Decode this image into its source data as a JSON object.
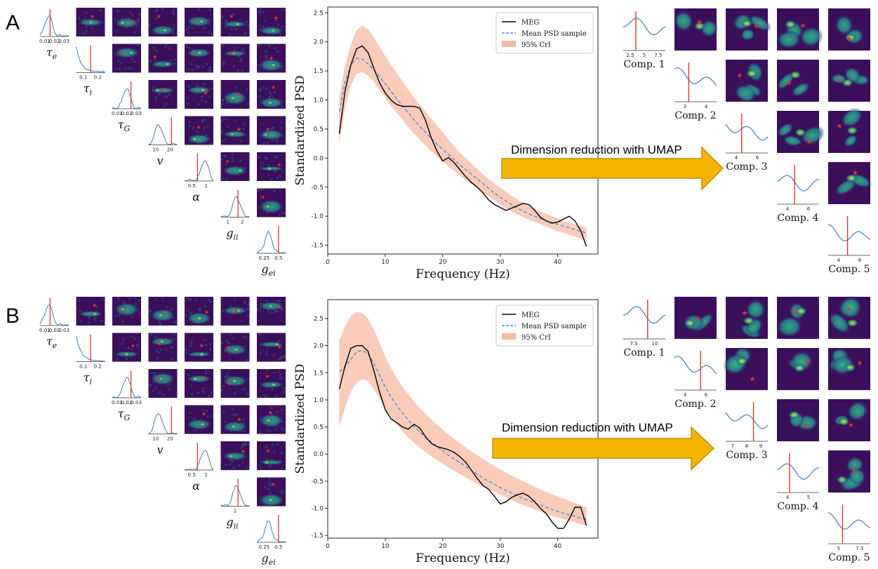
{
  "colors": {
    "meg": "#000000",
    "mean": "#4a90d9",
    "band": "#f7b9a0",
    "posterior_line": "#3a7fc0",
    "truth": "#e8332a",
    "arrow_fill": "#f5b400",
    "arrow_stroke": "#c48b00",
    "heat_dark": "#3b0f5c",
    "heat_mid": "#21918c",
    "heat_bright": "#fde725"
  },
  "panels": [
    {
      "letter": "A",
      "params": [
        {
          "label": "τe",
          "sub": "e",
          "base": "τ",
          "ticks": [
            "0.01",
            "0.02",
            "0.03"
          ]
        },
        {
          "label": "τi",
          "sub": "i",
          "base": "τ",
          "ticks": [
            "0.1",
            "0.2"
          ]
        },
        {
          "label": "τG",
          "sub": "G",
          "base": "τ",
          "ticks": [
            "0.01",
            "0.02",
            "0.03"
          ]
        },
        {
          "label": "v",
          "sub": "",
          "base": "v",
          "ticks": [
            "10",
            "20"
          ]
        },
        {
          "label": "α",
          "sub": "",
          "base": "α",
          "ticks": [
            "0.5",
            "1"
          ]
        },
        {
          "label": "gii",
          "sub": "ii",
          "base": "g",
          "ticks": [
            "1",
            "2"
          ]
        },
        {
          "label": "gei",
          "sub": "ei",
          "base": "g",
          "ticks": [
            "0.25",
            "0.5"
          ]
        }
      ],
      "arrow_label": "Dimension reduction with UMAP",
      "comps": [
        {
          "label": "Comp. 1",
          "ticks": [
            "2.5",
            "5",
            "7.5"
          ]
        },
        {
          "label": "Comp. 2",
          "ticks": [
            "3",
            "4"
          ]
        },
        {
          "label": "Comp. 3",
          "ticks": [
            "4",
            "6"
          ]
        },
        {
          "label": "Comp. 4",
          "ticks": [
            "4",
            "6"
          ]
        },
        {
          "label": "Comp. 5",
          "ticks": [
            "4",
            "6"
          ]
        }
      ]
    },
    {
      "letter": "B",
      "params": [
        {
          "label": "τe",
          "sub": "e",
          "base": "τ",
          "ticks": [
            "0.01",
            "0.02",
            "0.03"
          ]
        },
        {
          "label": "τi",
          "sub": "i",
          "base": "τ",
          "ticks": [
            "0.1",
            "0.2"
          ]
        },
        {
          "label": "τG",
          "sub": "G",
          "base": "τ",
          "ticks": [
            "0.01",
            "0.02",
            "0.03"
          ]
        },
        {
          "label": "v",
          "sub": "",
          "base": "v",
          "ticks": [
            "10",
            "20"
          ]
        },
        {
          "label": "α",
          "sub": "",
          "base": "α",
          "ticks": [
            "0.5",
            "1"
          ]
        },
        {
          "label": "gii",
          "sub": "ii",
          "base": "g",
          "ticks": [
            "1"
          ]
        },
        {
          "label": "gei",
          "sub": "ei",
          "base": "g",
          "ticks": [
            "0.25",
            "0.5"
          ]
        }
      ],
      "arrow_label": "Dimension reduction with UMAP",
      "comps": [
        {
          "label": "Comp. 1",
          "ticks": [
            "7.5",
            "10"
          ]
        },
        {
          "label": "Comp. 2",
          "ticks": [
            "4",
            "6"
          ]
        },
        {
          "label": "Comp. 3",
          "ticks": [
            "7",
            "8",
            "9"
          ]
        },
        {
          "label": "Comp. 4",
          "ticks": [
            "4",
            "5"
          ]
        },
        {
          "label": "Comp. 5",
          "ticks": [
            "5",
            "7.5"
          ]
        }
      ]
    }
  ],
  "chart_data": [
    {
      "type": "line",
      "panel": "A",
      "xlabel": "Frequency (Hz)",
      "ylabel": "Standardized PSD",
      "xlim": [
        0,
        47
      ],
      "ylim": [
        -1.65,
        2.6
      ],
      "xticks": [
        0,
        10,
        20,
        30,
        40
      ],
      "yticks": [
        -1.5,
        -1.0,
        -0.5,
        0.0,
        0.5,
        1.0,
        1.5,
        2.0,
        2.5
      ],
      "legend_position": "top-right",
      "x": [
        2,
        3,
        4,
        5,
        6,
        7,
        8,
        9,
        10,
        11,
        12,
        13,
        14,
        15,
        16,
        17,
        18,
        19,
        20,
        21,
        22,
        23,
        24,
        25,
        26,
        27,
        28,
        29,
        30,
        31,
        32,
        33,
        34,
        35,
        36,
        37,
        38,
        39,
        40,
        41,
        42,
        43,
        44,
        45
      ],
      "series": [
        {
          "name": "MEG",
          "values": [
            0.42,
            1.15,
            1.6,
            1.88,
            1.93,
            1.82,
            1.55,
            1.3,
            1.12,
            1.0,
            0.92,
            0.89,
            0.89,
            0.89,
            0.86,
            0.65,
            0.35,
            0.12,
            -0.05,
            0.01,
            -0.08,
            -0.2,
            -0.32,
            -0.42,
            -0.5,
            -0.6,
            -0.72,
            -0.8,
            -0.85,
            -0.9,
            -0.86,
            -0.82,
            -0.78,
            -0.8,
            -0.9,
            -1.02,
            -1.08,
            -1.12,
            -1.1,
            -1.05,
            -1.0,
            -1.08,
            -1.25,
            -1.52
          ]
        },
        {
          "name": "Mean PSD sample",
          "values": [
            0.8,
            1.3,
            1.6,
            1.72,
            1.7,
            1.62,
            1.52,
            1.4,
            1.28,
            1.15,
            1.02,
            0.9,
            0.78,
            0.66,
            0.55,
            0.44,
            0.34,
            0.24,
            0.15,
            0.06,
            -0.03,
            -0.12,
            -0.2,
            -0.28,
            -0.36,
            -0.44,
            -0.52,
            -0.6,
            -0.67,
            -0.74,
            -0.8,
            -0.86,
            -0.91,
            -0.96,
            -1.0,
            -1.04,
            -1.08,
            -1.11,
            -1.14,
            -1.17,
            -1.2,
            -1.23,
            -1.26,
            -1.29
          ]
        },
        {
          "name": "95% CrI",
          "lower": [
            0.25,
            0.85,
            1.25,
            1.45,
            1.48,
            1.42,
            1.32,
            1.18,
            1.04,
            0.9,
            0.78,
            0.66,
            0.54,
            0.42,
            0.32,
            0.22,
            0.12,
            0.03,
            -0.06,
            -0.14,
            -0.22,
            -0.3,
            -0.38,
            -0.45,
            -0.52,
            -0.59,
            -0.66,
            -0.73,
            -0.8,
            -0.86,
            -0.92,
            -0.97,
            -1.02,
            -1.06,
            -1.1,
            -1.14,
            -1.18,
            -1.22,
            -1.26,
            -1.29,
            -1.32,
            -1.35,
            -1.38,
            -1.42
          ],
          "upper": [
            1.05,
            1.6,
            1.95,
            2.2,
            2.28,
            2.22,
            2.08,
            1.92,
            1.76,
            1.6,
            1.46,
            1.32,
            1.18,
            1.04,
            0.92,
            0.8,
            0.68,
            0.56,
            0.44,
            0.32,
            0.2,
            0.09,
            0.0,
            -0.1,
            -0.19,
            -0.28,
            -0.36,
            -0.44,
            -0.51,
            -0.58,
            -0.65,
            -0.71,
            -0.77,
            -0.82,
            -0.87,
            -0.92,
            -0.96,
            -1.0,
            -1.04,
            -1.08,
            -1.11,
            -1.14,
            -1.17,
            -1.2
          ]
        }
      ]
    },
    {
      "type": "line",
      "panel": "B",
      "xlabel": "Frequency (Hz)",
      "ylabel": "Standardized PSD",
      "xlim": [
        0,
        47
      ],
      "ylim": [
        -1.55,
        2.85
      ],
      "xticks": [
        0,
        10,
        20,
        30,
        40
      ],
      "yticks": [
        -1.5,
        -1.0,
        -0.5,
        0.0,
        0.5,
        1.0,
        1.5,
        2.0,
        2.5
      ],
      "legend_position": "top-right",
      "x": [
        2,
        3,
        4,
        5,
        6,
        7,
        8,
        9,
        10,
        11,
        12,
        13,
        14,
        15,
        16,
        17,
        18,
        19,
        20,
        21,
        22,
        23,
        24,
        25,
        26,
        27,
        28,
        29,
        30,
        31,
        32,
        33,
        34,
        35,
        36,
        37,
        38,
        39,
        40,
        41,
        42,
        43,
        44,
        45
      ],
      "series": [
        {
          "name": "MEG",
          "values": [
            1.2,
            1.62,
            1.95,
            2.0,
            2.0,
            1.9,
            1.55,
            1.15,
            0.82,
            0.65,
            0.58,
            0.5,
            0.46,
            0.55,
            0.48,
            0.32,
            0.2,
            0.14,
            0.11,
            0.08,
            0.03,
            -0.05,
            -0.15,
            -0.3,
            -0.45,
            -0.58,
            -0.65,
            -0.78,
            -0.92,
            -0.88,
            -0.8,
            -0.75,
            -0.72,
            -0.78,
            -0.88,
            -1.0,
            -1.1,
            -1.25,
            -1.37,
            -1.37,
            -1.2,
            -0.98,
            -0.98,
            -1.32
          ]
        },
        {
          "name": "Mean PSD sample",
          "values": [
            1.52,
            1.6,
            1.75,
            1.88,
            1.92,
            1.85,
            1.68,
            1.46,
            1.24,
            1.05,
            0.9,
            0.76,
            0.63,
            0.51,
            0.41,
            0.31,
            0.22,
            0.14,
            0.06,
            -0.02,
            -0.09,
            -0.16,
            -0.23,
            -0.3,
            -0.37,
            -0.44,
            -0.5,
            -0.56,
            -0.62,
            -0.67,
            -0.72,
            -0.77,
            -0.82,
            -0.86,
            -0.9,
            -0.94,
            -0.98,
            -1.02,
            -1.06,
            -1.09,
            -1.12,
            -1.15,
            -1.18,
            -1.2
          ]
        },
        {
          "name": "95% CrI",
          "lower": [
            0.5,
            0.85,
            1.15,
            1.32,
            1.38,
            1.35,
            1.2,
            1.02,
            0.84,
            0.68,
            0.55,
            0.42,
            0.31,
            0.21,
            0.12,
            0.04,
            -0.04,
            -0.11,
            -0.18,
            -0.25,
            -0.31,
            -0.37,
            -0.43,
            -0.49,
            -0.55,
            -0.6,
            -0.65,
            -0.7,
            -0.75,
            -0.8,
            -0.85,
            -0.9,
            -0.94,
            -0.98,
            -1.02,
            -1.06,
            -1.1,
            -1.14,
            -1.17,
            -1.2,
            -1.23,
            -1.26,
            -1.29,
            -1.32
          ]
        },
        {
          "name": "95% CrI upper",
          "values_hidden": true
        }
      ],
      "band_upper": [
        2.1,
        2.35,
        2.55,
        2.62,
        2.6,
        2.5,
        2.3,
        2.05,
        1.8,
        1.58,
        1.4,
        1.24,
        1.1,
        0.97,
        0.85,
        0.74,
        0.64,
        0.54,
        0.45,
        0.36,
        0.28,
        0.2,
        0.12,
        0.05,
        -0.02,
        -0.09,
        -0.16,
        -0.22,
        -0.28,
        -0.34,
        -0.4,
        -0.45,
        -0.5,
        -0.55,
        -0.6,
        -0.65,
        -0.7,
        -0.74,
        -0.78,
        -0.82,
        -0.86,
        -0.9,
        -0.94,
        -0.98
      ]
    }
  ],
  "legend": {
    "meg": "MEG",
    "mean": "Mean PSD sample",
    "band": "95% CrI"
  }
}
